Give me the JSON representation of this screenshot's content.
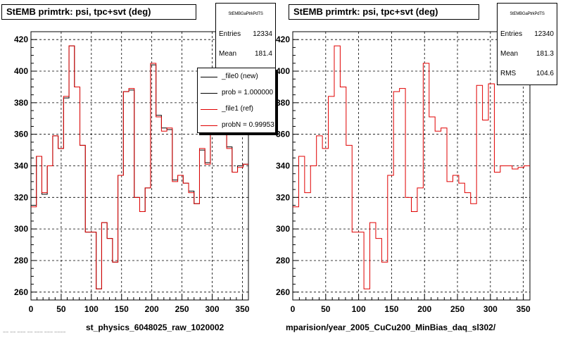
{
  "chart_data": [
    {
      "type": "line",
      "title": "StEMB primtrk: psi, tpc+svt (deg)",
      "xlabel": "st_physics_6048025_raw_1020002",
      "ylabel": "",
      "xlim": [
        0,
        360
      ],
      "ylim": [
        255,
        425
      ],
      "x_ticks": [
        "0",
        "50",
        "100",
        "150",
        "200",
        "250",
        "300",
        "350"
      ],
      "y_ticks": [
        "260",
        "280",
        "300",
        "320",
        "340",
        "360",
        "380",
        "400",
        "420"
      ],
      "grid": true,
      "legend_position": "top-right",
      "series": [
        {
          "name": "_file0 (new)",
          "color": "#000000",
          "style": "step",
          "x": [
            0,
            9,
            18,
            27,
            36,
            45,
            54,
            63,
            72,
            81,
            90,
            99,
            108,
            117,
            126,
            135,
            144,
            153,
            162,
            171,
            180,
            189,
            198,
            207,
            216,
            225,
            234,
            243,
            252,
            261,
            270,
            279,
            288,
            297,
            306,
            315,
            324,
            333,
            342,
            351
          ],
          "values": [
            315,
            346,
            322,
            340,
            359,
            351,
            383,
            416,
            390,
            353,
            298,
            298,
            262,
            304,
            294,
            279,
            334,
            387,
            388,
            320,
            311,
            326,
            404,
            372,
            364,
            363,
            331,
            334,
            329,
            324,
            316,
            350,
            342,
            374,
            378,
            360,
            352,
            336,
            340,
            341
          ]
        },
        {
          "name": "_file1 (ref)",
          "color": "#e00000",
          "style": "step",
          "x": [
            0,
            9,
            18,
            27,
            36,
            45,
            54,
            63,
            72,
            81,
            90,
            99,
            108,
            117,
            126,
            135,
            144,
            153,
            162,
            171,
            180,
            189,
            198,
            207,
            216,
            225,
            234,
            243,
            252,
            261,
            270,
            279,
            288,
            297,
            306,
            315,
            324,
            333,
            342,
            351
          ],
          "values": [
            314,
            346,
            323,
            340,
            359,
            351,
            384,
            416,
            390,
            353,
            298,
            298,
            262,
            304,
            294,
            279,
            334,
            387,
            389,
            320,
            311,
            326,
            405,
            371,
            362,
            364,
            330,
            334,
            329,
            323,
            316,
            351,
            341,
            375,
            377,
            361,
            351,
            336,
            339,
            341
          ]
        }
      ],
      "stats": {
        "header": "StEMBGaPtrkPdTS",
        "entries": "12334",
        "mean": "181.4"
      },
      "legend": [
        "_file0 (new)",
        "prob = 1.000000",
        "_file1 (ref)",
        "probN = 0.99953"
      ]
    },
    {
      "type": "line",
      "title": "StEMB primtrk: psi, tpc+svt (deg)",
      "xlabel": "mparision/year_2005_CuCu200_MinBias_daq_sl302/",
      "ylabel": "",
      "xlim": [
        0,
        360
      ],
      "ylim": [
        255,
        425
      ],
      "x_ticks": [
        "0",
        "50",
        "100",
        "150",
        "200",
        "250",
        "300",
        "350"
      ],
      "y_ticks": [
        "260",
        "280",
        "300",
        "320",
        "340",
        "360",
        "380",
        "400",
        "420"
      ],
      "grid": true,
      "series": [
        {
          "name": "",
          "color": "#e00000",
          "style": "step",
          "x": [
            0,
            9,
            18,
            27,
            36,
            45,
            54,
            63,
            72,
            81,
            90,
            99,
            108,
            117,
            126,
            135,
            144,
            153,
            162,
            171,
            180,
            189,
            198,
            207,
            216,
            225,
            234,
            243,
            252,
            261,
            270,
            279,
            288,
            297,
            306,
            315,
            324,
            333,
            342,
            351
          ],
          "values": [
            314,
            346,
            323,
            340,
            359,
            351,
            384,
            416,
            390,
            353,
            298,
            298,
            262,
            304,
            294,
            279,
            334,
            387,
            389,
            320,
            311,
            326,
            405,
            371,
            362,
            364,
            330,
            334,
            329,
            323,
            316,
            391,
            369,
            392,
            336,
            340,
            340,
            338,
            339,
            340
          ]
        }
      ],
      "stats": {
        "header": "StEMBGaPtrkPdTS",
        "entries": "12340",
        "mean": "181.3",
        "rms": "104.6"
      }
    }
  ],
  "labels": {
    "entries": "Entries",
    "mean": "Mean",
    "rms": "RMS"
  },
  "footer": {
    "corner_text": "~~ ~~ ~~~ ~~ ~~~ ~~~ ~~~~"
  }
}
